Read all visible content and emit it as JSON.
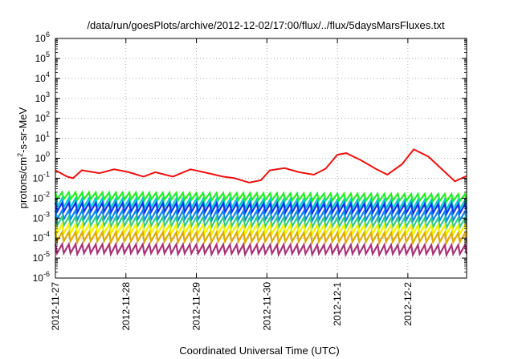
{
  "chart_data": {
    "type": "line",
    "title": "/data/run/goesPlots/archive/2012-12-02/17:00/flux/../flux/5daysMarsFluxes.txt",
    "xlabel": "Coordinated Universal Time (UTC)",
    "ylabel_prefix": "protons/cm",
    "ylabel_sup": "2",
    "ylabel_suffix": "-s-sr-MeV",
    "yscale": "log",
    "ylim": [
      1e-06,
      1000000.0
    ],
    "xlim": [
      "2012-11-27 00:00",
      "2012-12-02 20:00"
    ],
    "grid": true,
    "x_ticks": [
      "2012-11-27",
      "2012-11-28",
      "2012-11-29",
      "2012-11-30",
      "2012-12-1",
      "2012-12-2"
    ],
    "y_ticks": [
      {
        "base": "10",
        "exp": "-6"
      },
      {
        "base": "10",
        "exp": "-5"
      },
      {
        "base": "10",
        "exp": "-4"
      },
      {
        "base": "10",
        "exp": "-3"
      },
      {
        "base": "10",
        "exp": "-2"
      },
      {
        "base": "10",
        "exp": "-1"
      },
      {
        "base": "10",
        "exp": "0"
      },
      {
        "base": "10",
        "exp": "1"
      },
      {
        "base": "10",
        "exp": "2"
      },
      {
        "base": "10",
        "exp": "3"
      },
      {
        "base": "10",
        "exp": "4"
      },
      {
        "base": "10",
        "exp": "5"
      },
      {
        "base": "10",
        "exp": "6"
      }
    ],
    "series": [
      {
        "color": "#ee1111",
        "points": [
          [
            "2012-11-27 00:00",
            0.25
          ],
          [
            "2012-11-27 04:00",
            0.12
          ],
          [
            "2012-11-27 06:00",
            0.1
          ],
          [
            "2012-11-27 09:00",
            0.25
          ],
          [
            "2012-11-27 15:00",
            0.18
          ],
          [
            "2012-11-27 20:00",
            0.28
          ],
          [
            "2012-11-28 01:00",
            0.2
          ],
          [
            "2012-11-28 06:00",
            0.12
          ],
          [
            "2012-11-28 10:00",
            0.2
          ],
          [
            "2012-11-28 16:00",
            0.12
          ],
          [
            "2012-11-28 22:00",
            0.28
          ],
          [
            "2012-11-29 04:00",
            0.18
          ],
          [
            "2012-11-29 09:00",
            0.12
          ],
          [
            "2012-11-29 13:00",
            0.1
          ],
          [
            "2012-11-29 18:00",
            0.06
          ],
          [
            "2012-11-29 22:00",
            0.08
          ],
          [
            "2012-11-30 01:00",
            0.25
          ],
          [
            "2012-11-30 06:00",
            0.32
          ],
          [
            "2012-11-30 11:00",
            0.2
          ],
          [
            "2012-11-30 16:00",
            0.15
          ],
          [
            "2012-11-30 20:00",
            0.3
          ],
          [
            "2012-12-01 00:00",
            1.5
          ],
          [
            "2012-12-01 03:00",
            1.8
          ],
          [
            "2012-12-01 08:00",
            0.8
          ],
          [
            "2012-12-01 13:00",
            0.3
          ],
          [
            "2012-12-01 17:00",
            0.15
          ],
          [
            "2012-12-01 22:00",
            0.5
          ],
          [
            "2012-12-02 02:00",
            2.8
          ],
          [
            "2012-12-02 07:00",
            1.2
          ],
          [
            "2012-12-02 12:00",
            0.25
          ],
          [
            "2012-12-02 16:00",
            0.07
          ],
          [
            "2012-12-02 20:00",
            0.13
          ]
        ]
      },
      {
        "color": "#22ee22",
        "points": [
          [
            "2012-11-27 00:00",
            0.02
          ],
          [
            "2012-12-02 20:00",
            0.016
          ]
        ]
      },
      {
        "color": "#00cccc",
        "points": [
          [
            "2012-11-27 00:00",
            0.01
          ],
          [
            "2012-12-02 20:00",
            0.008
          ]
        ]
      },
      {
        "color": "#1133ee",
        "points": [
          [
            "2012-11-27 00:00",
            0.006
          ],
          [
            "2012-12-02 20:00",
            0.005
          ]
        ]
      },
      {
        "color": "#1188ee",
        "points": [
          [
            "2012-11-27 00:00",
            0.0025
          ],
          [
            "2012-12-02 20:00",
            0.0022
          ]
        ]
      },
      {
        "color": "#33cc88",
        "points": [
          [
            "2012-11-27 00:00",
            0.0012
          ],
          [
            "2012-12-02 20:00",
            0.001
          ]
        ]
      },
      {
        "color": "#f2f200",
        "points": [
          [
            "2012-11-27 00:00",
            0.0005
          ],
          [
            "2012-12-02 20:00",
            0.00045
          ]
        ]
      },
      {
        "color": "#ddaa00",
        "points": [
          [
            "2012-11-27 00:00",
            0.0002
          ],
          [
            "2012-12-02 20:00",
            0.00018
          ]
        ]
      },
      {
        "color": "#aa3377",
        "points": [
          [
            "2012-11-27 00:00",
            5e-05
          ],
          [
            "2012-12-02 20:00",
            4.5e-05
          ]
        ]
      }
    ]
  }
}
